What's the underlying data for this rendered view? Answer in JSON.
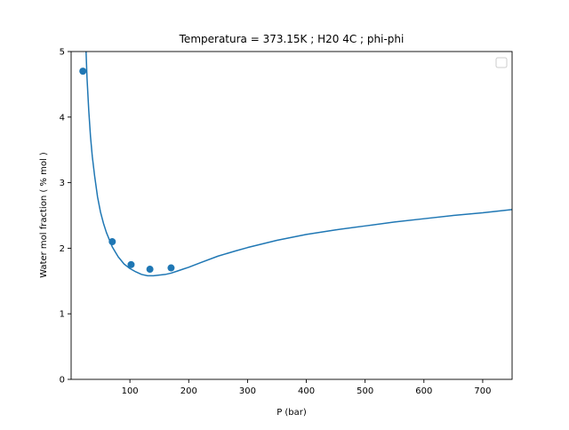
{
  "chart_data": {
    "type": "scatter",
    "title": "Temperatura = 373.15K ; H20 4C ; phi-phi",
    "xlabel": "P (bar)",
    "ylabel": "Water mol fraction ( % mol )",
    "xlim": [
      0,
      750
    ],
    "ylim": [
      0,
      5
    ],
    "x_ticks": [
      100,
      200,
      300,
      400,
      500,
      600,
      700
    ],
    "y_ticks": [
      0,
      1,
      2,
      3,
      4,
      5
    ],
    "grid": false,
    "legend": {
      "placement": "top-right",
      "entries": []
    },
    "series": [
      {
        "kind": "line",
        "color": "#1f77b4",
        "x": [
          25,
          27,
          30,
          33,
          36,
          40,
          45,
          50,
          55,
          60,
          70,
          80,
          90,
          100,
          110,
          120,
          130,
          140,
          150,
          160,
          170,
          180,
          190,
          200,
          220,
          250,
          280,
          300,
          350,
          400,
          450,
          500,
          550,
          600,
          650,
          700,
          750
        ],
        "y": [
          5.1,
          4.6,
          4.1,
          3.7,
          3.4,
          3.1,
          2.78,
          2.55,
          2.38,
          2.24,
          2.02,
          1.87,
          1.76,
          1.69,
          1.64,
          1.6,
          1.58,
          1.58,
          1.59,
          1.6,
          1.62,
          1.65,
          1.68,
          1.71,
          1.78,
          1.88,
          1.96,
          2.01,
          2.12,
          2.21,
          2.28,
          2.34,
          2.4,
          2.45,
          2.5,
          2.54,
          2.59
        ]
      },
      {
        "kind": "scatter",
        "color": "#1f77b4",
        "x": [
          20,
          70,
          102,
          134,
          170
        ],
        "y": [
          4.7,
          2.1,
          1.75,
          1.68,
          1.7
        ]
      }
    ]
  }
}
